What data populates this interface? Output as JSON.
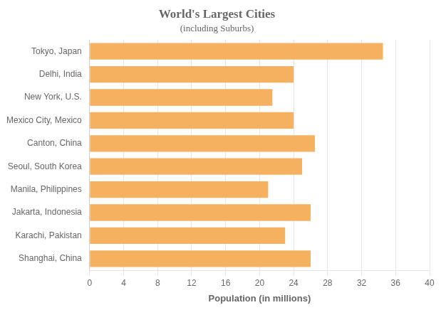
{
  "chart_data": {
    "type": "bar",
    "orientation": "horizontal",
    "title": "World's Largest Cities",
    "subtitle": "(including Suburbs)",
    "xlabel": "Population (in millions)",
    "categories": [
      "Tokyo, Japan",
      "Delhi, India",
      "New York, U.S.",
      "Mexico City, Mexico",
      "Canton, China",
      "Seoul, South Korea",
      "Manila, Philippines",
      "Jakarta, Indonesia",
      "Karachi, Pakistan",
      "Shanghai, China"
    ],
    "values": [
      34.5,
      24.0,
      21.5,
      24.0,
      26.5,
      25.0,
      21.0,
      26.0,
      23.0,
      26.0
    ],
    "color": "#F5B060",
    "xlim": [
      0,
      40
    ],
    "xticks": [
      0,
      4,
      8,
      12,
      16,
      20,
      24,
      28,
      32,
      36,
      40
    ],
    "grid": "x"
  }
}
